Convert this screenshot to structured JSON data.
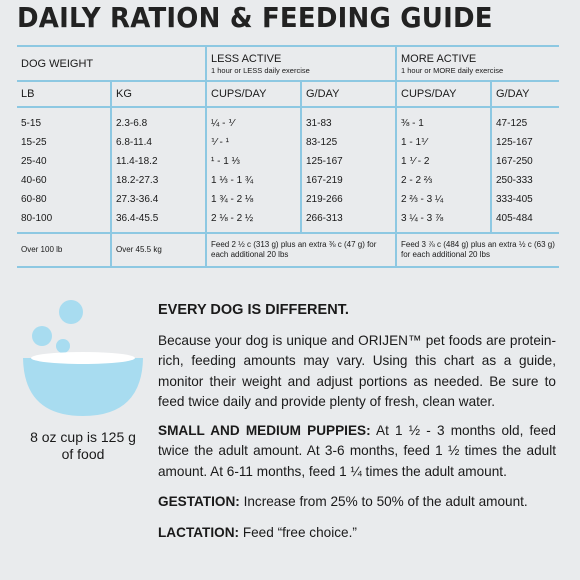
{
  "title": "DAILY RATION & FEEDING GUIDE",
  "table": {
    "header": {
      "dog_weight": "DOG WEIGHT",
      "less_active": "LESS ACTIVE",
      "less_active_sub": "1 hour or LESS daily exercise",
      "more_active": "MORE ACTIVE",
      "more_active_sub": "1 hour or MORE daily exercise"
    },
    "columns": [
      "LB",
      "KG",
      "CUPS/DAY",
      "G/DAY",
      "CUPS/DAY",
      "G/DAY"
    ],
    "rows": [
      [
        "5-15",
        "2.3-6.8",
        "¼ - ⅟",
        "31-83",
        "⅜ - 1",
        "47-125"
      ],
      [
        "15-25",
        "6.8-11.4",
        "⅟ - ¹",
        "83-125",
        "1 - 1⅟",
        "125-167"
      ],
      [
        "25-40",
        "11.4-18.2",
        "¹ - 1 ⅓",
        "125-167",
        "1 ⅟ - 2",
        "167-250"
      ],
      [
        "40-60",
        "18.2-27.3",
        "1 ⅓ - 1 ¾",
        "167-219",
        "2 - 2 ⅔",
        "250-333"
      ],
      [
        "60-80",
        "27.3-36.4",
        "1 ¾ - 2 ⅛",
        "219-266",
        "2 ⅔ - 3 ¼",
        "333-405"
      ],
      [
        "80-100",
        "36.4-45.5",
        "2 ⅛ - 2 ½",
        "266-313",
        "3 ¼ - 3 ⅞",
        "405-484"
      ]
    ],
    "over": {
      "lb": "Over 100 lb",
      "kg": "Over 45.5 kg",
      "less": "Feed 2 ½ c (313 g) plus an extra ⅜ c (47 g) for each additional 20 lbs",
      "more": "Feed 3 ⅞ c (484 g) plus an extra ½ c (63 g) for each additional 20 lbs"
    }
  },
  "bowl_colors": {
    "bowl": "#a8dcf0",
    "water": "#ffffff",
    "drops": "#a8dcf0"
  },
  "cup_note": "8 oz cup is 125 g of food",
  "content": {
    "heading": "EVERY DOG IS DIFFERENT.",
    "intro": "Because your dog is unique and ORIJEN™ pet foods are protein-rich, feeding amounts may vary. Using this chart as a guide, monitor their weight and adjust portions as needed. Be sure to feed twice daily and provide plenty of fresh, clean water.",
    "puppies_label": "SMALL AND MEDIUM PUPPIES:",
    "puppies_text": " At 1 ½ - 3 months old, feed twice the adult amount. At 3-6 months, feed 1 ½ times the adult amount. At 6-11 months, feed 1 ¼ times the adult amount.",
    "gestation_label": "GESTATION:",
    "gestation_text": " Increase from 25% to 50% of the adult amount.",
    "lactation_label": "LACTATION:",
    "lactation_text": " Feed “free choice.”"
  }
}
